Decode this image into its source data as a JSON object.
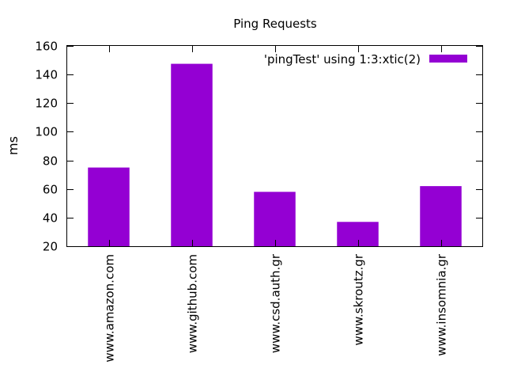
{
  "chart_data": {
    "type": "bar",
    "title": "Ping Requests",
    "xlabel": "",
    "ylabel": "ms",
    "categories": [
      "www.amazon.com",
      "www.github.com",
      "www.csd.auth.gr",
      "www.skroutz.gr",
      "www.insomnia.gr"
    ],
    "series": [
      {
        "name": "'pingTest' using 1:3:xtic(2)",
        "values": [
          75,
          147.5,
          58,
          37,
          62
        ]
      }
    ],
    "ylim": [
      20,
      160
    ],
    "yticks": [
      20,
      40,
      60,
      80,
      100,
      120,
      140,
      160
    ],
    "grid": false,
    "legend_position": "top-right",
    "colors": {
      "bar": "#9400d3",
      "axis": "#000000"
    }
  }
}
